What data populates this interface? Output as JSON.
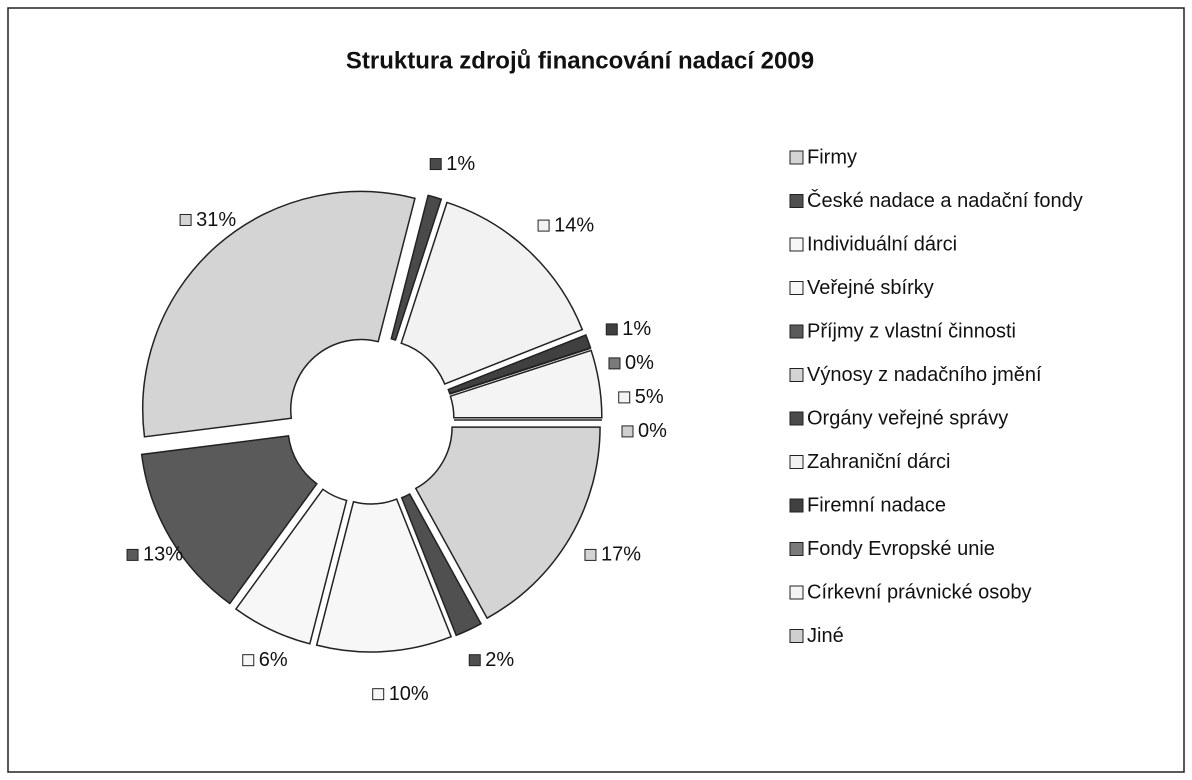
{
  "chart_data": {
    "type": "donut",
    "title": "Struktura zdrojů financování nadací 2009",
    "categories": [
      "Firmy",
      "České nadace a nadační fondy",
      "Individuální dárci",
      "Veřejné sbírky",
      "Příjmy z vlastní činnosti",
      "Výnosy z nadačního jmění",
      "Orgány veřejné správy",
      "Zahraniční dárci",
      "Firemní nadace",
      "Fondy Evropské unie",
      "Církevní právnické osoby",
      "Jiné"
    ],
    "values": [
      17,
      2,
      10,
      6,
      13,
      31,
      1,
      14,
      1,
      0,
      5,
      0
    ],
    "value_labels": [
      "17%",
      "2%",
      "10%",
      "6%",
      "13%",
      "31%",
      "1%",
      "14%",
      "1%",
      "0%",
      "5%",
      "0%"
    ],
    "colors": [
      "#d4d4d4",
      "#505050",
      "#f7f7f7",
      "#f7f7f7",
      "#5a5a5a",
      "#d4d4d4",
      "#4a4a4a",
      "#f2f2f2",
      "#404040",
      "#7a7a7a",
      "#f4f4f4",
      "#cfcfcf"
    ],
    "start_angle": 90,
    "legend": "right"
  }
}
